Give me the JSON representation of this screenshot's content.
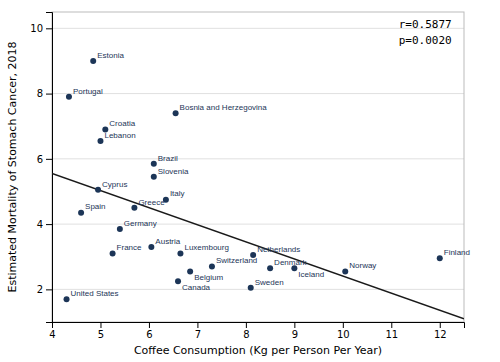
{
  "chart_data": {
    "type": "scatter",
    "xlabel": "Coffee Consumption (Kg per Person Per Year)",
    "ylabel": "Estimated Mortality of Stomach Cancer, 2018",
    "series": [
      {
        "type": "scatter",
        "color": "#1c3557",
        "labels": [
          "Estonia",
          "Portugal",
          "Bosnia and Herzegovina",
          "Croatia",
          "Lebanon",
          "Brazil",
          "Slovenia",
          "Cyprus",
          "Italy",
          "Greece",
          "Spain",
          "Germany",
          "Austria",
          "Luxembourg",
          "France",
          "Netherlands",
          "Switzerland",
          "Denmark",
          "Belgium",
          "Iceland",
          "Canada",
          "Sweden",
          "Norway",
          "Finland",
          "United States"
        ],
        "x": [
          4.85,
          4.35,
          6.55,
          5.1,
          5.0,
          6.1,
          6.1,
          4.95,
          6.35,
          5.7,
          4.6,
          5.4,
          6.05,
          6.65,
          5.25,
          8.15,
          7.3,
          8.5,
          6.85,
          9.0,
          6.6,
          8.1,
          10.05,
          12.0,
          4.3
        ],
        "values": [
          9.0,
          7.9,
          7.4,
          6.9,
          6.55,
          5.85,
          5.45,
          5.05,
          4.75,
          4.5,
          4.35,
          3.85,
          3.3,
          3.1,
          3.1,
          3.05,
          2.7,
          2.65,
          2.55,
          2.65,
          2.25,
          2.05,
          2.55,
          2.95,
          1.7
        ]
      },
      {
        "type": "line",
        "color": "#1a1a1a",
        "x": [
          4.0,
          12.5
        ],
        "values": [
          5.55,
          1.1
        ]
      }
    ],
    "annotations": [
      "r=0.5877",
      "p=0.0020"
    ],
    "xlim": [
      4.0,
      12.5
    ],
    "ylim": [
      1.0,
      10.5
    ],
    "xticks": [
      4,
      5,
      6,
      7,
      8,
      9,
      10,
      11,
      12
    ],
    "yticks": [
      2,
      4,
      6,
      8,
      10
    ],
    "grid": "y"
  }
}
